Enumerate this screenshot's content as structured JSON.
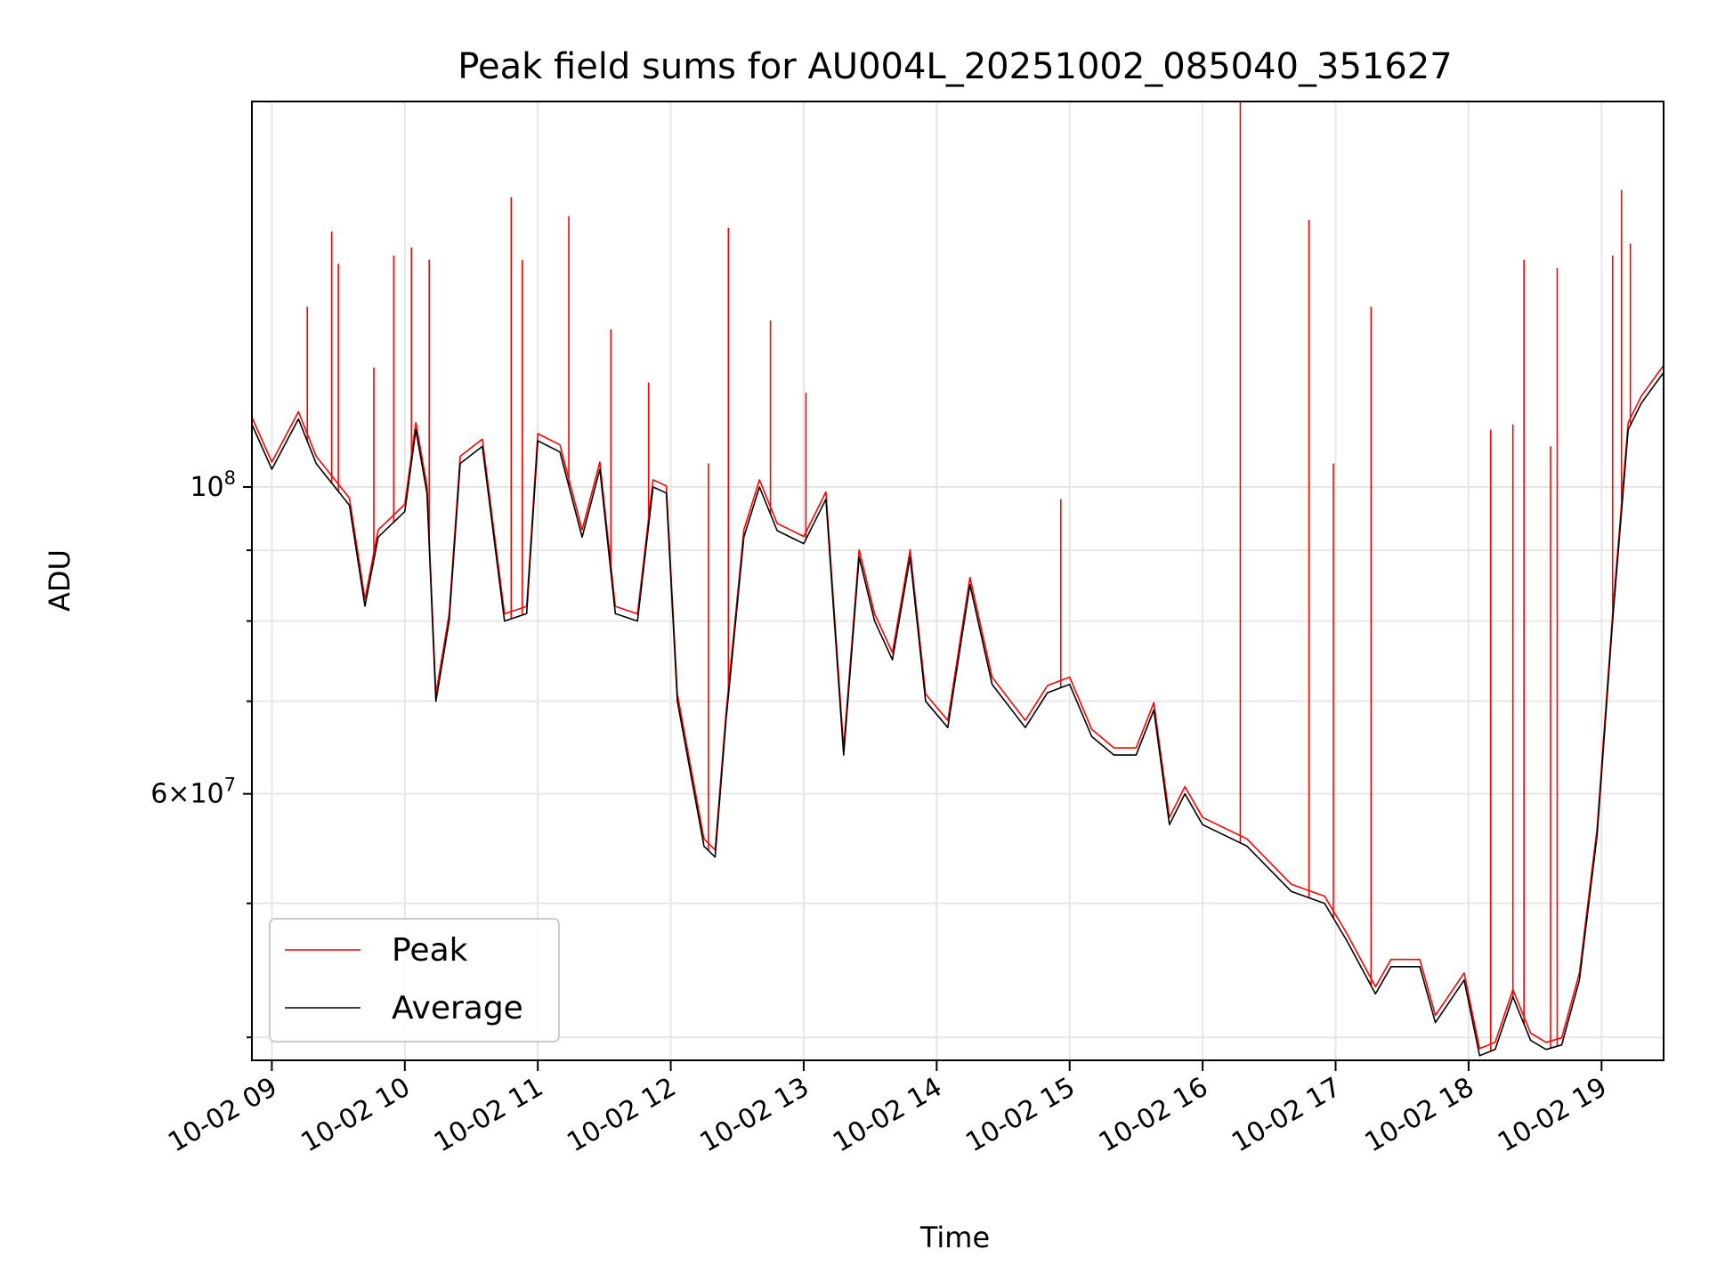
{
  "chart_data": {
    "type": "line",
    "title": "Peak field sums for AU004L_20251002_085040_351627",
    "xlabel": "Time",
    "ylabel": "ADU",
    "y_scale": "log",
    "ylim": [
      38500000,
      190000000
    ],
    "xlim": [
      "10-02 08:51",
      "10-02 19:28"
    ],
    "grid": true,
    "legend_position": "bottom-left",
    "x_ticks": [
      "10-02 09",
      "10-02 10",
      "10-02 11",
      "10-02 12",
      "10-02 13",
      "10-02 14",
      "10-02 15",
      "10-02 16",
      "10-02 17",
      "10-02 18",
      "10-02 19"
    ],
    "y_tick_labels": [
      {
        "value": 100000000,
        "base": "10",
        "exp": "8",
        "mantissa": ""
      },
      {
        "value": 60000000,
        "base": "10",
        "exp": "7",
        "mantissa": "6×"
      }
    ],
    "y_minor_ticks": [
      40000000,
      50000000,
      70000000,
      80000000,
      90000000
    ],
    "series": [
      {
        "name": "Peak",
        "color": "#ff0000"
      },
      {
        "name": "Average",
        "color": "#000000"
      }
    ],
    "x": [
      "10-02 08:51",
      "10-02 09:00",
      "10-02 09:12",
      "10-02 09:20",
      "10-02 09:35",
      "10-02 09:42",
      "10-02 09:48",
      "10-02 10:00",
      "10-02 10:05",
      "10-02 10:10",
      "10-02 10:14",
      "10-02 10:20",
      "10-02 10:25",
      "10-02 10:35",
      "10-02 10:45",
      "10-02 10:55",
      "10-02 11:00",
      "10-02 11:10",
      "10-02 11:20",
      "10-02 11:28",
      "10-02 11:35",
      "10-02 11:45",
      "10-02 11:52",
      "10-02 11:58",
      "10-02 12:03",
      "10-02 12:15",
      "10-02 12:20",
      "10-02 12:25",
      "10-02 12:33",
      "10-02 12:40",
      "10-02 12:48",
      "10-02 13:00",
      "10-02 13:10",
      "10-02 13:18",
      "10-02 13:25",
      "10-02 13:32",
      "10-02 13:40",
      "10-02 13:48",
      "10-02 13:55",
      "10-02 14:05",
      "10-02 14:15",
      "10-02 14:25",
      "10-02 14:40",
      "10-02 14:50",
      "10-02 15:00",
      "10-02 15:10",
      "10-02 15:20",
      "10-02 15:30",
      "10-02 15:38",
      "10-02 15:45",
      "10-02 15:52",
      "10-02 16:00",
      "10-02 16:20",
      "10-02 16:40",
      "10-02 16:55",
      "10-02 17:05",
      "10-02 17:18",
      "10-02 17:25",
      "10-02 17:38",
      "10-02 17:45",
      "10-02 17:58",
      "10-02 18:05",
      "10-02 18:12",
      "10-02 18:20",
      "10-02 18:28",
      "10-02 18:35",
      "10-02 18:42",
      "10-02 18:50",
      "10-02 18:58",
      "10-02 19:05",
      "10-02 19:12",
      "10-02 19:18",
      "10-02 19:28"
    ],
    "average": [
      111000000,
      103000000,
      112000000,
      104000000,
      97000000,
      82000000,
      92000000,
      96000000,
      110000000,
      99000000,
      70000000,
      80000000,
      104000000,
      107000000,
      80000000,
      81000000,
      108000000,
      106000000,
      92000000,
      103000000,
      81000000,
      80000000,
      100000000,
      99000000,
      70000000,
      55000000,
      54000000,
      68000000,
      92000000,
      100000000,
      93000000,
      91000000,
      98000000,
      64000000,
      89000000,
      80000000,
      75000000,
      89000000,
      70000000,
      67000000,
      85000000,
      72000000,
      67000000,
      71000000,
      72000000,
      66000000,
      64000000,
      64000000,
      69000000,
      57000000,
      60000000,
      57000000,
      55000000,
      51000000,
      50000000,
      47000000,
      43000000,
      45000000,
      45000000,
      41000000,
      44000000,
      38800000,
      39200000,
      42800000,
      39800000,
      39200000,
      39500000,
      44000000,
      56000000,
      80000000,
      110000000,
      115000000,
      121000000
    ],
    "peak_spikes": [
      {
        "x": "10-02 09:16",
        "value": 135000000
      },
      {
        "x": "10-02 09:27",
        "value": 153000000
      },
      {
        "x": "10-02 09:30",
        "value": 145000000
      },
      {
        "x": "10-02 09:46",
        "value": 122000000
      },
      {
        "x": "10-02 09:55",
        "value": 147000000
      },
      {
        "x": "10-02 10:03",
        "value": 149000000
      },
      {
        "x": "10-02 10:11",
        "value": 146000000
      },
      {
        "x": "10-02 10:48",
        "value": 162000000
      },
      {
        "x": "10-02 10:53",
        "value": 146000000
      },
      {
        "x": "10-02 11:14",
        "value": 157000000
      },
      {
        "x": "10-02 11:33",
        "value": 130000000
      },
      {
        "x": "10-02 11:50",
        "value": 119000000
      },
      {
        "x": "10-02 12:17",
        "value": 104000000
      },
      {
        "x": "10-02 12:26",
        "value": 154000000
      },
      {
        "x": "10-02 12:45",
        "value": 132000000
      },
      {
        "x": "10-02 13:01",
        "value": 117000000
      },
      {
        "x": "10-02 14:56",
        "value": 98000000
      },
      {
        "x": "10-02 16:17",
        "value": 190000000
      },
      {
        "x": "10-02 16:48",
        "value": 156000000
      },
      {
        "x": "10-02 16:59",
        "value": 104000000
      },
      {
        "x": "10-02 17:16",
        "value": 135000000
      },
      {
        "x": "10-02 18:10",
        "value": 110000000
      },
      {
        "x": "10-02 18:20",
        "value": 111000000
      },
      {
        "x": "10-02 18:25",
        "value": 146000000
      },
      {
        "x": "10-02 18:37",
        "value": 107000000
      },
      {
        "x": "10-02 18:40",
        "value": 144000000
      },
      {
        "x": "10-02 19:05",
        "value": 147000000
      },
      {
        "x": "10-02 19:09",
        "value": 164000000
      },
      {
        "x": "10-02 19:13",
        "value": 150000000
      }
    ]
  }
}
